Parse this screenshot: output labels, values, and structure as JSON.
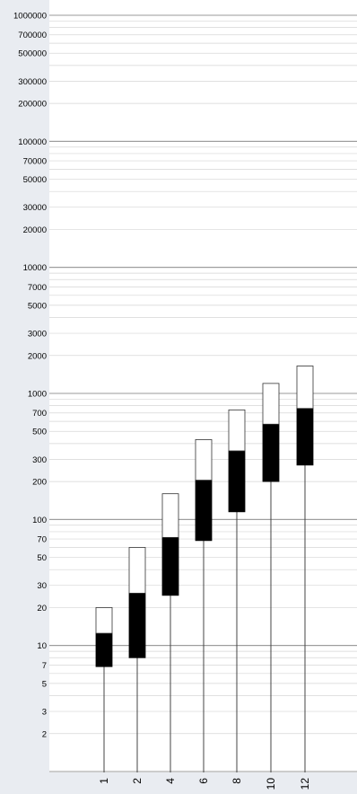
{
  "chart_data": {
    "type": "bar",
    "subtype": "floating stacked range bars on log scale",
    "title": "",
    "xlabel": "",
    "ylabel": "",
    "y_scale": "log10",
    "ylim": [
      1,
      1000000
    ],
    "grid": true,
    "y_tick_labels": [
      "1000000",
      "700000",
      "500000",
      "300000",
      "200000",
      "100000",
      "70000",
      "50000",
      "30000",
      "20000",
      "10000",
      "7000",
      "5000",
      "3000",
      "2000",
      "1000",
      "700",
      "500",
      "300",
      "200",
      "100",
      "70",
      "50",
      "30",
      "20",
      "10",
      "7",
      "5",
      "3",
      "2"
    ],
    "categories": [
      "1",
      "2",
      "4",
      "6",
      "8",
      "10",
      "12"
    ],
    "series": [
      {
        "low": [
          6.8,
          8,
          25,
          68,
          115,
          200,
          270
        ]
      },
      {
        "mid": [
          12.5,
          26,
          72,
          205,
          350,
          570,
          760
        ]
      },
      {
        "high": [
          20,
          60,
          160,
          430,
          740,
          1200,
          1650
        ]
      }
    ],
    "colors": {
      "lower_segment": "#000000",
      "upper_segment": "#ffffff",
      "background": "#e9ecf1",
      "plot_bg": "#ffffff",
      "major_grid": "#9a9a9a",
      "minor_grid": "#d6d6d6",
      "whisker": "#444444"
    }
  }
}
